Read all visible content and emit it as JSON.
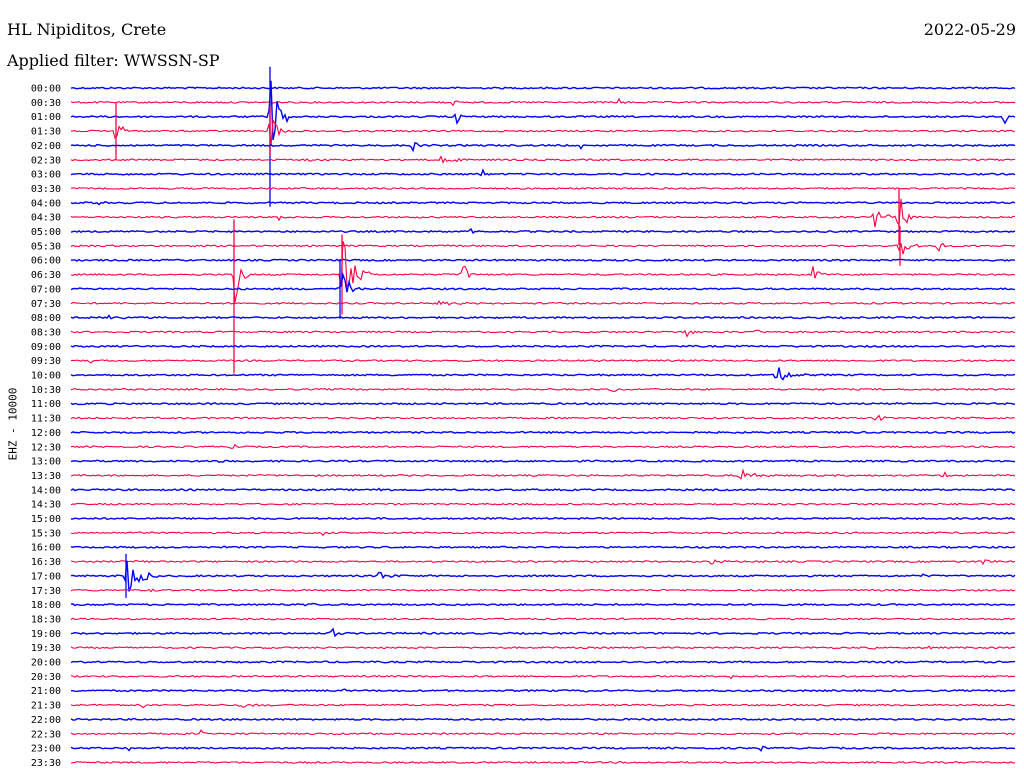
{
  "header": {
    "station": "HL Nipiditos, Crete",
    "date": "2022-05-29",
    "filter": "Applied filter: WWSSN-SP"
  },
  "axis_label": "EHZ - 10000",
  "colors": {
    "blue": "#0000ff",
    "red": "#ff0040"
  },
  "chart_data": {
    "type": "line",
    "trace_colors_alternate": [
      "blue",
      "red"
    ],
    "rows": [
      "00:00",
      "00:30",
      "01:00",
      "01:30",
      "02:00",
      "02:30",
      "03:00",
      "03:30",
      "04:00",
      "04:30",
      "05:00",
      "05:30",
      "06:00",
      "06:30",
      "07:00",
      "07:30",
      "08:00",
      "08:30",
      "09:00",
      "09:30",
      "10:00",
      "10:30",
      "11:00",
      "11:30",
      "12:00",
      "12:30",
      "13:00",
      "13:30",
      "14:00",
      "14:30",
      "15:00",
      "15:30",
      "16:00",
      "16:30",
      "17:00",
      "17:30",
      "18:00",
      "18:30",
      "19:00",
      "19:30",
      "20:00",
      "20:30",
      "21:00",
      "21:30",
      "22:00",
      "22:30",
      "23:00",
      "23:30"
    ]
  }
}
